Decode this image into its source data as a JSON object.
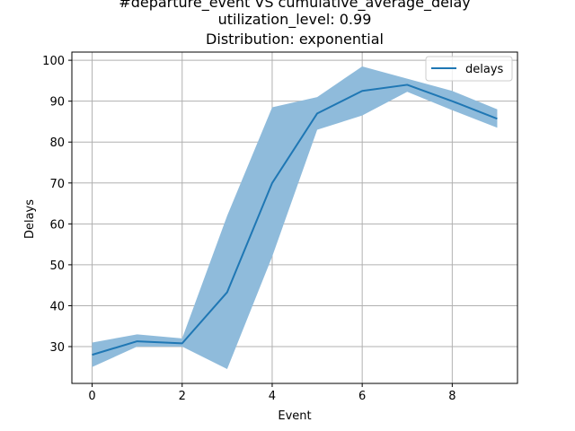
{
  "chart_data": {
    "type": "line",
    "title_lines": [
      "#departure_event VS cumulative_average_delay",
      "utilization_level: 0.99",
      "Distribution: exponential"
    ],
    "xlabel": "Event",
    "ylabel": "Delays",
    "xlim": [
      -0.45,
      9.45
    ],
    "ylim": [
      21,
      102
    ],
    "x_ticks": [
      0,
      2,
      4,
      6,
      8
    ],
    "y_ticks": [
      30,
      40,
      50,
      60,
      70,
      80,
      90,
      100
    ],
    "grid": true,
    "legend_position": "top-right",
    "x": [
      0,
      1,
      2,
      3,
      4,
      5,
      6,
      7,
      8,
      9
    ],
    "series": [
      {
        "name": "delays",
        "color": "#1f77b4",
        "values": [
          28.0,
          31.3,
          30.8,
          43.3,
          70.0,
          87.0,
          92.5,
          94.0,
          90.0,
          85.7
        ],
        "band_upper": [
          31.0,
          33.0,
          32.0,
          62.0,
          88.5,
          91.0,
          98.5,
          95.5,
          92.5,
          88.0
        ],
        "band_lower": [
          25.0,
          30.0,
          30.0,
          24.5,
          52.0,
          83.0,
          86.5,
          92.3,
          87.8,
          83.5
        ],
        "band_color": "#8fbbdb"
      }
    ]
  }
}
